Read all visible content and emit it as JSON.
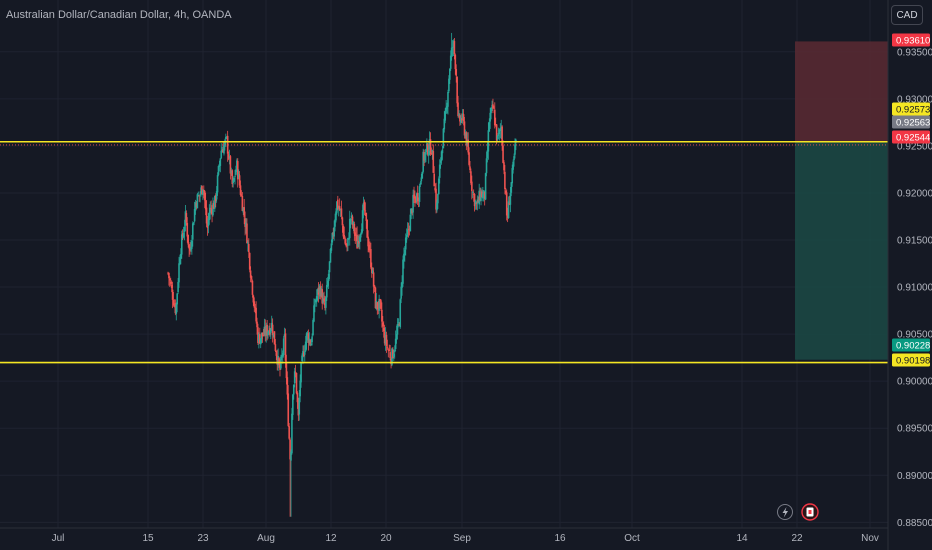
{
  "header": {
    "symbol_title": "Australian Dollar/Canadian Dollar, 4h, OANDA",
    "currency_label": "CAD"
  },
  "colors": {
    "background": "#151924",
    "grid": "#1f2330",
    "bull": "#26a69a",
    "bear": "#ef5350",
    "support_line": "#f5e623",
    "stop_zone": "#5b2a32",
    "target_zone": "#1b4a45",
    "tag_red": "#f23645",
    "tag_yellow": "#f5e623",
    "tag_gray": "#787b86",
    "tag_green": "#089981"
  },
  "chart_data": {
    "type": "candlestick",
    "title": "Australian Dollar/Canadian Dollar, 4h, OANDA",
    "ylim": [
      0.8844,
      0.9405
    ],
    "y_ticks": [
      "0.93500",
      "0.93000",
      "0.92500",
      "0.92000",
      "0.91500",
      "0.91000",
      "0.90500",
      "0.90000",
      "0.89500",
      "0.89000",
      "0.88500"
    ],
    "x_ticks": [
      "Jul",
      "15",
      "23",
      "Aug",
      "12",
      "20",
      "Sep",
      "16",
      "Oct",
      "14",
      "22",
      "Nov"
    ],
    "horizontal_lines": [
      {
        "price": 0.92544
      },
      {
        "price": 0.90198
      }
    ],
    "price_tags": [
      {
        "label": "0.93610",
        "price": 0.9361,
        "style": "red"
      },
      {
        "label": "0.92573",
        "price": 0.92573,
        "style": "yellow"
      },
      {
        "label": "0.92563",
        "price": 0.92563,
        "style": "gray"
      },
      {
        "label": "0.92544",
        "price": 0.92544,
        "style": "red"
      },
      {
        "label": "0.90228",
        "price": 0.90228,
        "style": "green"
      },
      {
        "label": "0.90198",
        "price": 0.90198,
        "style": "yellow"
      }
    ],
    "position": {
      "stop": 0.9361,
      "entry": 0.92544,
      "target": 0.90228
    },
    "close_path": [
      [
        0,
        0.9115
      ],
      [
        0.04,
        0.9075
      ],
      [
        0.06,
        0.9135
      ],
      [
        0.09,
        0.9175
      ],
      [
        0.11,
        0.9135
      ],
      [
        0.14,
        0.919
      ],
      [
        0.165,
        0.92
      ],
      [
        0.18,
        0.921
      ],
      [
        0.2,
        0.916
      ],
      [
        0.21,
        0.918
      ],
      [
        0.24,
        0.919
      ],
      [
        0.27,
        0.9245
      ],
      [
        0.3,
        0.9255
      ],
      [
        0.33,
        0.9205
      ],
      [
        0.35,
        0.923
      ],
      [
        0.375,
        0.9195
      ],
      [
        0.4,
        0.916
      ],
      [
        0.43,
        0.91
      ],
      [
        0.46,
        0.9045
      ],
      [
        0.49,
        0.905
      ],
      [
        0.51,
        0.9055
      ],
      [
        0.53,
        0.906
      ],
      [
        0.545,
        0.904
      ],
      [
        0.57,
        0.901
      ],
      [
        0.595,
        0.9045
      ],
      [
        0.61,
        0.8975
      ],
      [
        0.625,
        0.891
      ],
      [
        0.635,
        0.899
      ],
      [
        0.65,
        0.901
      ],
      [
        0.665,
        0.896
      ],
      [
        0.675,
        0.9005
      ],
      [
        0.69,
        0.903
      ],
      [
        0.71,
        0.905
      ],
      [
        0.73,
        0.904
      ],
      [
        0.75,
        0.9085
      ],
      [
        0.775,
        0.91
      ],
      [
        0.8,
        0.9075
      ],
      [
        0.83,
        0.9135
      ],
      [
        0.86,
        0.919
      ],
      [
        0.88,
        0.918
      ],
      [
        0.9,
        0.915
      ],
      [
        0.915,
        0.914
      ],
      [
        0.93,
        0.9175
      ],
      [
        0.95,
        0.916
      ],
      [
        0.965,
        0.9145
      ],
      [
        0.985,
        0.9165
      ],
      [
        1.0,
        0.9185
      ],
      [
        1.02,
        0.915
      ],
      [
        1.04,
        0.912
      ],
      [
        1.06,
        0.908
      ],
      [
        1.08,
        0.908
      ],
      [
        1.1,
        0.905
      ],
      [
        1.12,
        0.9035
      ],
      [
        1.14,
        0.9025
      ],
      [
        1.16,
        0.904
      ],
      [
        1.18,
        0.9065
      ],
      [
        1.2,
        0.913
      ],
      [
        1.23,
        0.9165
      ],
      [
        1.25,
        0.919
      ],
      [
        1.28,
        0.92
      ],
      [
        1.3,
        0.9235
      ],
      [
        1.33,
        0.925
      ],
      [
        1.345,
        0.9248
      ],
      [
        1.36,
        0.921
      ],
      [
        1.37,
        0.918
      ],
      [
        1.39,
        0.9235
      ],
      [
        1.42,
        0.929
      ],
      [
        1.44,
        0.934
      ],
      [
        1.455,
        0.936
      ],
      [
        1.47,
        0.933
      ],
      [
        1.48,
        0.9275
      ],
      [
        1.5,
        0.928
      ],
      [
        1.52,
        0.926
      ],
      [
        1.54,
        0.9225
      ],
      [
        1.555,
        0.92
      ],
      [
        1.575,
        0.9185
      ],
      [
        1.595,
        0.92
      ],
      [
        1.615,
        0.9195
      ],
      [
        1.64,
        0.928
      ],
      [
        1.66,
        0.929
      ],
      [
        1.68,
        0.9255
      ],
      [
        1.7,
        0.927
      ],
      [
        1.72,
        0.9205
      ],
      [
        1.73,
        0.917
      ],
      [
        1.74,
        0.919
      ],
      [
        1.76,
        0.9225
      ],
      [
        1.775,
        0.9255
      ]
    ],
    "candle_count": 380,
    "special_wicks": [
      {
        "frac": 0.6255,
        "low": 0.8856
      },
      {
        "frac": 1.446,
        "high": 0.937
      }
    ]
  }
}
